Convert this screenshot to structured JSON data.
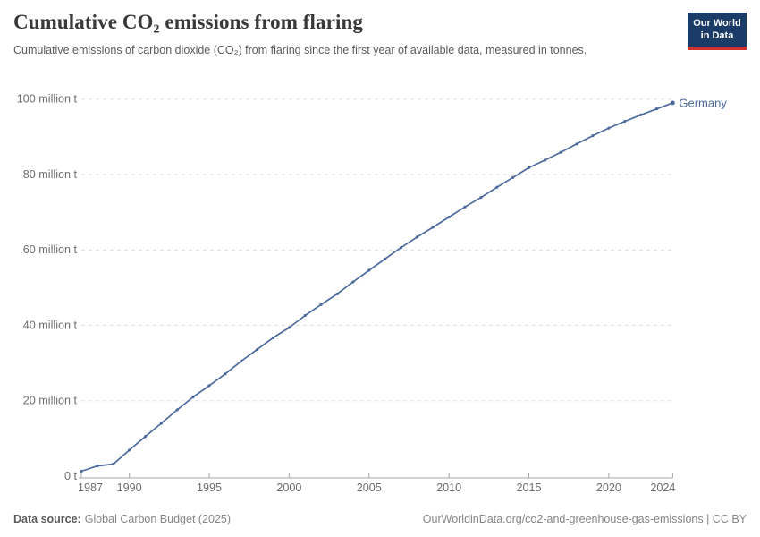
{
  "header": {
    "title": "Cumulative CO₂ emissions from flaring",
    "subtitle": "Cumulative emissions of carbon dioxide (CO₂) from flaring since the first year of available data, measured in tonnes.",
    "logo": {
      "line1": "Our World",
      "line2": "in Data"
    }
  },
  "footer": {
    "source_label": "Data source:",
    "source_value": "Global Carbon Budget (2025)",
    "right_text": "OurWorldinData.org/co2-and-greenhouse-gas-emissions | CC BY"
  },
  "colors": {
    "line": "#4c6a9c",
    "series_label": "#4c6a9c",
    "grid": "#dddddd",
    "axis": "#a7a7a7",
    "axis_text": "#6e6e6e",
    "title_text": "#383838",
    "subtitle_text": "#5b5b5b",
    "footer_text": "#858585",
    "logo_bg": "#1a3c66",
    "logo_red": "#cf332c"
  },
  "chart_data": {
    "type": "line",
    "title": "Cumulative CO₂ emissions from flaring",
    "xlabel": "",
    "ylabel": "",
    "unit": "million t",
    "grid": true,
    "legend_position": "end-of-line-label",
    "xlim": [
      1987,
      2024
    ],
    "ylim": [
      0,
      100
    ],
    "x_ticks": [
      1987,
      1990,
      1995,
      2000,
      2005,
      2010,
      2015,
      2020,
      2024
    ],
    "y_ticks": [
      0,
      20,
      40,
      60,
      80,
      100
    ],
    "y_tick_labels": [
      "0 t",
      "20 million t",
      "40 million t",
      "60 million t",
      "80 million t",
      "100 million t"
    ],
    "series": [
      {
        "name": "Germany",
        "x": [
          1987,
          1988,
          1989,
          1990,
          1991,
          1992,
          1993,
          1994,
          1995,
          1996,
          1997,
          1998,
          1999,
          2000,
          2001,
          2002,
          2003,
          2004,
          2005,
          2006,
          2007,
          2008,
          2009,
          2010,
          2011,
          2012,
          2013,
          2014,
          2015,
          2016,
          2017,
          2018,
          2019,
          2020,
          2021,
          2022,
          2023,
          2024
        ],
        "values": [
          1.3,
          2.7,
          3.2,
          6.9,
          10.5,
          14.0,
          17.6,
          21.0,
          24.0,
          27.1,
          30.5,
          33.6,
          36.7,
          39.4,
          42.6,
          45.5,
          48.3,
          51.5,
          54.6,
          57.6,
          60.6,
          63.4,
          66.0,
          68.7,
          71.4,
          73.9,
          76.6,
          79.2,
          81.8,
          83.8,
          85.9,
          88.1,
          90.3,
          92.3,
          94.1,
          95.8,
          97.4,
          99.0
        ]
      }
    ]
  }
}
